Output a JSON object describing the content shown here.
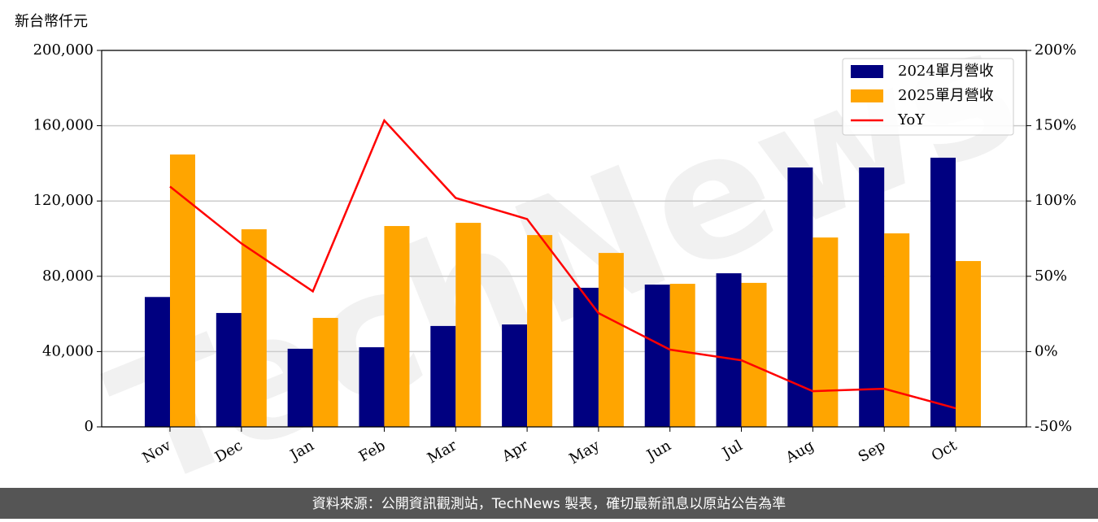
{
  "chart_data": {
    "type": "bar_line",
    "y_label": "新台幣仟元",
    "watermark": "TechNews",
    "footer": "資料來源：公開資訊觀測站，TechNews 製表，確切最新訊息以原站公告為準",
    "categories": [
      "Nov",
      "Dec",
      "Jan",
      "Feb",
      "Mar",
      "Apr",
      "May",
      "Jun",
      "Jul",
      "Aug",
      "Sep",
      "Oct"
    ],
    "series": [
      {
        "name": "2024單月營收",
        "type": "bar",
        "color": "#000080",
        "values": [
          69000,
          60500,
          41500,
          42300,
          53600,
          54400,
          73900,
          75600,
          81600,
          137800,
          137800,
          143000
        ]
      },
      {
        "name": "2025單月營收",
        "type": "bar",
        "color": "#ffa500",
        "values": [
          144700,
          105000,
          57900,
          106700,
          108400,
          101900,
          92400,
          76000,
          76500,
          100600,
          102800,
          88100
        ]
      },
      {
        "name": "YoY",
        "type": "line",
        "axis": "y2",
        "color": "#ff0000",
        "values": [
          109.6,
          71.8,
          40,
          153.5,
          102,
          88,
          25.5,
          1.3,
          -5.8,
          -26.3,
          -24.7,
          -37.6
        ]
      }
    ],
    "ylim": [
      0,
      200000
    ],
    "yticks": [
      {
        "value": 0,
        "label": "0"
      },
      {
        "value": 40000,
        "label": "40,000"
      },
      {
        "value": 80000,
        "label": "80,000"
      },
      {
        "value": 120000,
        "label": "120,000"
      },
      {
        "value": 160000,
        "label": "160,000"
      },
      {
        "value": 200000,
        "label": "200,000"
      }
    ],
    "y2lim": [
      -50,
      200
    ],
    "y2ticks": [
      {
        "value": -50,
        "label": "-50%"
      },
      {
        "value": 0,
        "label": "0%"
      },
      {
        "value": 50,
        "label": "50%"
      },
      {
        "value": 100,
        "label": "100%"
      },
      {
        "value": 150,
        "label": "150%"
      },
      {
        "value": 200,
        "label": "200%"
      }
    ],
    "grid": true,
    "legend": "upper right"
  }
}
